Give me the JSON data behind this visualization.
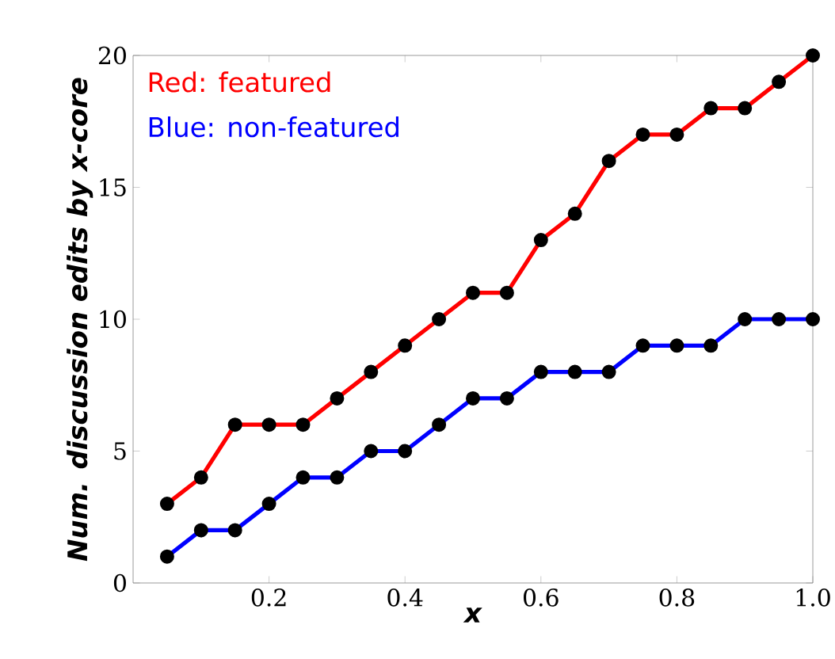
{
  "chart_data": {
    "type": "line",
    "xlabel": "x",
    "ylabel": "Num. discussion edits by x-core",
    "x": [
      0.05,
      0.1,
      0.15,
      0.2,
      0.25,
      0.3,
      0.35,
      0.4,
      0.45,
      0.5,
      0.55,
      0.6,
      0.65,
      0.7,
      0.75,
      0.8,
      0.85,
      0.9,
      0.95,
      1.0
    ],
    "series": [
      {
        "name": "Red: featured",
        "color": "#ff0000",
        "values": [
          3,
          4,
          6,
          6,
          6,
          7,
          8,
          9,
          10,
          11,
          11,
          13,
          14,
          16,
          17,
          17,
          18,
          18,
          19,
          20
        ]
      },
      {
        "name": "Blue: non-featured",
        "color": "#0000ff",
        "values": [
          1,
          2,
          2,
          3,
          4,
          4,
          5,
          5,
          6,
          7,
          7,
          8,
          8,
          8,
          9,
          9,
          9,
          10,
          10,
          10
        ]
      }
    ],
    "xlim": [
      0,
      1.0
    ],
    "ylim": [
      0,
      20
    ],
    "xticks": [
      0.2,
      0.4,
      0.6,
      0.8,
      {
        "value": 1.0,
        "label": "1.0"
      }
    ],
    "yticks": [
      0,
      5,
      10,
      15,
      20
    ],
    "marker": "circle",
    "legend": "top left",
    "grid": false
  }
}
